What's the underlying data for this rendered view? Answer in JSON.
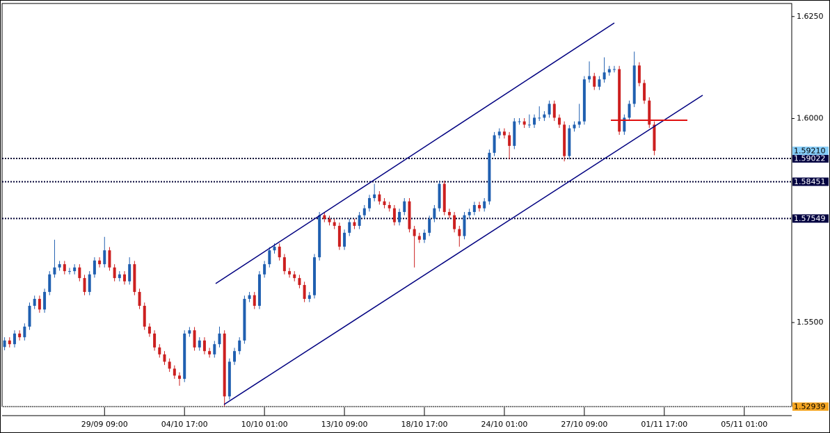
{
  "chart_data": {
    "type": "candlestick",
    "ylim": [
      1.5294,
      1.6282
    ],
    "yticks": [
      {
        "value": 1.625,
        "label": "1.6250"
      },
      {
        "value": 1.6,
        "label": "1.6000"
      },
      {
        "value": 1.55,
        "label": "1.5500"
      }
    ],
    "xlim": [
      -0.5,
      157.5
    ],
    "xticks": [
      {
        "value": 20,
        "label": "29/09 09:00"
      },
      {
        "value": 36,
        "label": "04/10 17:00"
      },
      {
        "value": 52,
        "label": "10/10 01:00"
      },
      {
        "value": 68,
        "label": "13/10 09:00"
      },
      {
        "value": 84,
        "label": "18/10 17:00"
      },
      {
        "value": 100,
        "label": "24/10 01:00"
      },
      {
        "value": 116,
        "label": "27/10 09:00"
      },
      {
        "value": 132,
        "label": "01/11 17:00"
      },
      {
        "value": 148,
        "label": "05/11 01:00"
      }
    ],
    "up_color": "#1f5fb0",
    "down_color": "#cc1f1f",
    "open": [
      1.544,
      1.5456,
      1.5447,
      1.5473,
      1.5464,
      1.549,
      1.5541,
      1.5558,
      1.5532,
      1.5575,
      1.5618,
      1.5635,
      1.5643,
      1.5626,
      1.5626,
      1.5635,
      1.5609,
      1.5575,
      1.5618,
      1.5652,
      1.5643,
      1.5677,
      1.5635,
      1.5609,
      1.5618,
      1.5601,
      1.5643,
      1.5575,
      1.5541,
      1.549,
      1.5473,
      1.5439,
      1.5422,
      1.5404,
      1.5387,
      1.537,
      1.5362,
      1.5473,
      1.5481,
      1.5439,
      1.5456,
      1.543,
      1.5422,
      1.5447,
      1.5473,
      1.5319,
      1.5404,
      1.543,
      1.5456,
      1.5558,
      1.5567,
      1.5541,
      1.5618,
      1.5643,
      1.5677,
      1.5686,
      1.566,
      1.5626,
      1.5618,
      1.5609,
      1.5592,
      1.5558,
      1.5567,
      1.566,
      1.5763,
      1.5754,
      1.5746,
      1.5737,
      1.5686,
      1.572,
      1.5746,
      1.5737,
      1.5763,
      1.578,
      1.5805,
      1.5814,
      1.5797,
      1.5788,
      1.578,
      1.5746,
      1.5771,
      1.5797,
      1.5729,
      1.5712,
      1.5703,
      1.572,
      1.5754,
      1.578,
      1.584,
      1.5771,
      1.5763,
      1.5729,
      1.5712,
      1.5763,
      1.5771,
      1.5788,
      1.578,
      1.5797,
      1.5916,
      1.5959,
      1.5968,
      1.5959,
      1.5933,
      1.5993,
      1.5993,
      1.5985,
      1.5985,
      1.6002,
      1.6002,
      1.601,
      1.6036,
      1.6002,
      1.5985,
      1.5908,
      1.5976,
      1.5985,
      1.5993,
      1.6096,
      1.6104,
      1.6078,
      1.6096,
      1.6113,
      1.6121,
      1.6121,
      1.5968,
      1.6002,
      1.6036,
      1.613,
      1.6087,
      1.6044,
      1.5985
    ],
    "high": [
      1.5464,
      1.5464,
      1.5481,
      1.5481,
      1.5498,
      1.5549,
      1.5566,
      1.5566,
      1.5583,
      1.5626,
      1.5703,
      1.5651,
      1.5651,
      1.5634,
      1.5643,
      1.5643,
      1.5617,
      1.5626,
      1.566,
      1.566,
      1.571,
      1.5685,
      1.5643,
      1.5626,
      1.5626,
      1.566,
      1.5651,
      1.5583,
      1.5549,
      1.5498,
      1.5481,
      1.5447,
      1.543,
      1.5412,
      1.5395,
      1.5378,
      1.5481,
      1.5489,
      1.5489,
      1.5464,
      1.5464,
      1.5438,
      1.5455,
      1.549,
      1.5481,
      1.5412,
      1.5438,
      1.5464,
      1.5566,
      1.5575,
      1.5575,
      1.5626,
      1.5651,
      1.5685,
      1.5694,
      1.5694,
      1.5668,
      1.5634,
      1.5626,
      1.5617,
      1.56,
      1.5575,
      1.5668,
      1.5771,
      1.5771,
      1.5762,
      1.5754,
      1.5745,
      1.5728,
      1.5754,
      1.5754,
      1.5771,
      1.5788,
      1.5813,
      1.584,
      1.5822,
      1.5805,
      1.5796,
      1.5788,
      1.5779,
      1.5805,
      1.5805,
      1.5737,
      1.572,
      1.5728,
      1.5762,
      1.5788,
      1.5848,
      1.5848,
      1.5779,
      1.5771,
      1.5737,
      1.5771,
      1.5779,
      1.5796,
      1.5796,
      1.5805,
      1.5924,
      1.5967,
      1.5976,
      1.5976,
      1.5967,
      1.6001,
      1.6001,
      1.6001,
      1.601,
      1.601,
      1.603,
      1.6018,
      1.6044,
      1.6044,
      1.601,
      1.5993,
      1.5984,
      1.5993,
      1.6036,
      1.6104,
      1.614,
      1.6112,
      1.6104,
      1.615,
      1.6129,
      1.6129,
      1.6129,
      1.601,
      1.6044,
      1.6164,
      1.6138,
      1.6095,
      1.6052,
      1.5993
    ],
    "low": [
      1.5432,
      1.5439,
      1.5439,
      1.5456,
      1.5456,
      1.5482,
      1.5533,
      1.5524,
      1.5524,
      1.5567,
      1.561,
      1.5627,
      1.5618,
      1.5618,
      1.5618,
      1.5601,
      1.5567,
      1.5567,
      1.561,
      1.5635,
      1.5635,
      1.5627,
      1.5601,
      1.5601,
      1.5593,
      1.5593,
      1.5567,
      1.5533,
      1.5482,
      1.5465,
      1.5431,
      1.5414,
      1.5396,
      1.5379,
      1.5362,
      1.5345,
      1.5354,
      1.5465,
      1.5431,
      1.5431,
      1.5422,
      1.5414,
      1.5414,
      1.5439,
      1.5294,
      1.5311,
      1.5396,
      1.5422,
      1.5448,
      1.555,
      1.5533,
      1.5533,
      1.561,
      1.5635,
      1.5669,
      1.5652,
      1.5618,
      1.561,
      1.5601,
      1.5584,
      1.555,
      1.555,
      1.5559,
      1.5652,
      1.5746,
      1.5738,
      1.5729,
      1.5678,
      1.5678,
      1.5712,
      1.5729,
      1.5729,
      1.5755,
      1.5772,
      1.5797,
      1.5789,
      1.578,
      1.5772,
      1.5738,
      1.5738,
      1.5763,
      1.5721,
      1.5635,
      1.5695,
      1.5695,
      1.5712,
      1.5746,
      1.5772,
      1.5763,
      1.5755,
      1.5721,
      1.5686,
      1.5704,
      1.5755,
      1.5763,
      1.5772,
      1.5772,
      1.5789,
      1.5908,
      1.5951,
      1.5951,
      1.59,
      1.5925,
      1.5985,
      1.5977,
      1.5977,
      1.5977,
      1.5994,
      1.5994,
      1.6002,
      1.5994,
      1.5977,
      1.5895,
      1.59,
      1.5968,
      1.5977,
      1.5985,
      1.6088,
      1.607,
      1.607,
      1.6088,
      1.6105,
      1.6113,
      1.596,
      1.596,
      1.5994,
      1.6028,
      1.6079,
      1.6036,
      1.5977,
      1.591
    ],
    "close": [
      1.5456,
      1.5447,
      1.5473,
      1.5464,
      1.549,
      1.5541,
      1.5558,
      1.5532,
      1.5575,
      1.5618,
      1.5635,
      1.5643,
      1.5626,
      1.5626,
      1.5635,
      1.5609,
      1.5575,
      1.5618,
      1.5652,
      1.5643,
      1.5677,
      1.5635,
      1.5609,
      1.5618,
      1.5601,
      1.5643,
      1.5575,
      1.5541,
      1.549,
      1.5473,
      1.5439,
      1.5422,
      1.5404,
      1.5387,
      1.537,
      1.5362,
      1.5473,
      1.5481,
      1.5439,
      1.5456,
      1.543,
      1.5422,
      1.5447,
      1.5473,
      1.5319,
      1.5404,
      1.543,
      1.5456,
      1.5558,
      1.5567,
      1.5541,
      1.5618,
      1.5643,
      1.5677,
      1.5686,
      1.566,
      1.5626,
      1.5618,
      1.5609,
      1.5592,
      1.5558,
      1.5567,
      1.566,
      1.5763,
      1.5754,
      1.5746,
      1.5737,
      1.5686,
      1.572,
      1.5746,
      1.5737,
      1.5763,
      1.578,
      1.5805,
      1.5814,
      1.5797,
      1.5788,
      1.578,
      1.5746,
      1.5771,
      1.5797,
      1.5729,
      1.5712,
      1.5703,
      1.572,
      1.5754,
      1.578,
      1.584,
      1.5771,
      1.5763,
      1.5729,
      1.5712,
      1.5763,
      1.5771,
      1.5788,
      1.578,
      1.5797,
      1.5916,
      1.5959,
      1.5968,
      1.5959,
      1.5933,
      1.5993,
      1.5993,
      1.5985,
      1.5985,
      1.6002,
      1.6002,
      1.601,
      1.6036,
      1.6002,
      1.5985,
      1.5908,
      1.5976,
      1.5985,
      1.5993,
      1.6096,
      1.6104,
      1.6078,
      1.6096,
      1.6113,
      1.6121,
      1.6121,
      1.5968,
      1.6002,
      1.6036,
      1.613,
      1.6087,
      1.6044,
      1.5985,
      1.5921
    ],
    "levels": [
      1.59022,
      1.58451,
      1.57549
    ],
    "current_price": {
      "value": 1.5921,
      "label": "1.59210"
    },
    "period_low": 1.52939
  }
}
